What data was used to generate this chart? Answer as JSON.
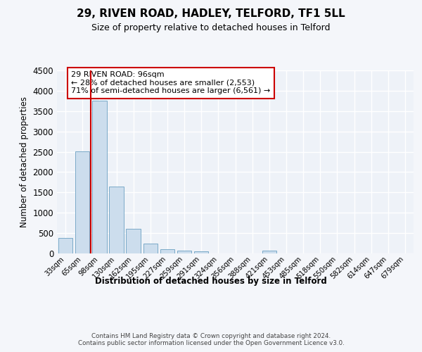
{
  "title_line1": "29, RIVEN ROAD, HADLEY, TELFORD, TF1 5LL",
  "title_line2": "Size of property relative to detached houses in Telford",
  "xlabel": "Distribution of detached houses by size in Telford",
  "ylabel": "Number of detached properties",
  "categories": [
    "33sqm",
    "65sqm",
    "98sqm",
    "130sqm",
    "162sqm",
    "195sqm",
    "227sqm",
    "259sqm",
    "291sqm",
    "324sqm",
    "356sqm",
    "388sqm",
    "421sqm",
    "453sqm",
    "485sqm",
    "518sqm",
    "550sqm",
    "582sqm",
    "614sqm",
    "647sqm",
    "679sqm"
  ],
  "values": [
    380,
    2510,
    3750,
    1640,
    600,
    240,
    105,
    65,
    55,
    0,
    0,
    0,
    70,
    0,
    0,
    0,
    0,
    0,
    0,
    0,
    0
  ],
  "bar_color": "#ccdded",
  "bar_edgecolor": "#7aaac8",
  "vline_color": "#cc0000",
  "annotation_text": "29 RIVEN ROAD: 96sqm\n← 28% of detached houses are smaller (2,553)\n71% of semi-detached houses are larger (6,561) →",
  "annotation_box_facecolor": "#ffffff",
  "annotation_box_edgecolor": "#cc0000",
  "ylim": [
    0,
    4500
  ],
  "yticks": [
    0,
    500,
    1000,
    1500,
    2000,
    2500,
    3000,
    3500,
    4000,
    4500
  ],
  "bg_color": "#eef2f8",
  "grid_color": "#ffffff",
  "fig_facecolor": "#f4f6fa",
  "footer": "Contains HM Land Registry data © Crown copyright and database right 2024.\nContains public sector information licensed under the Open Government Licence v3.0."
}
